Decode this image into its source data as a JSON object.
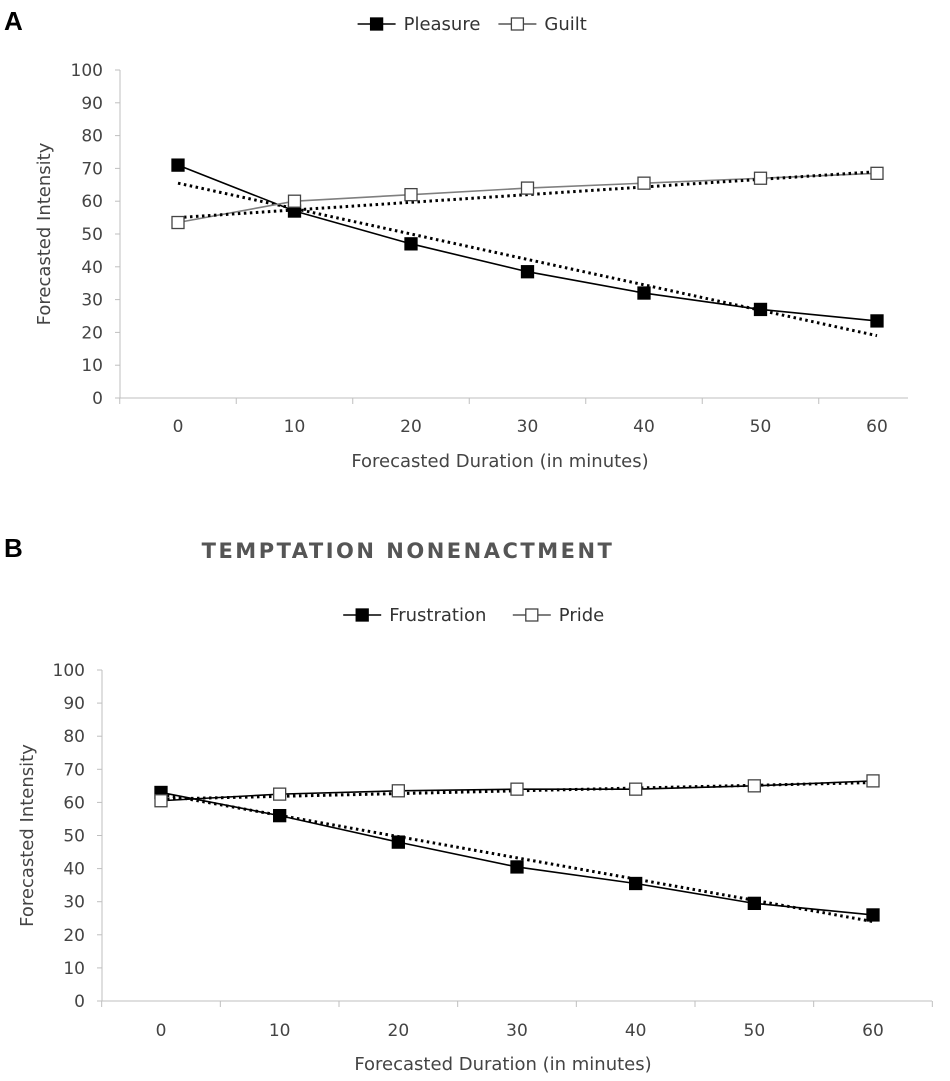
{
  "panels": {
    "a": {
      "label": "A"
    },
    "b": {
      "label": "B"
    }
  },
  "chart_data": [
    {
      "type": "line",
      "panel": "A",
      "title": "",
      "xlabel": "Forecasted Duration (in minutes)",
      "ylabel": "Forecasted Intensity",
      "xlim": [
        0,
        60
      ],
      "ylim": [
        0,
        100
      ],
      "x": [
        0,
        10,
        20,
        30,
        40,
        50,
        60
      ],
      "yticks": [
        0,
        10,
        20,
        30,
        40,
        50,
        60,
        70,
        80,
        90,
        100
      ],
      "legend_position": "top-center",
      "series": [
        {
          "name": "Pleasure",
          "marker": "filled-square",
          "color": "#000000",
          "values": [
            71,
            57,
            47,
            38.5,
            32,
            27,
            23.5
          ],
          "trendline": {
            "type": "linear",
            "start": 65.5,
            "end": 19
          }
        },
        {
          "name": "Guilt",
          "marker": "open-square",
          "color": "#7f7f7f",
          "values": [
            53.5,
            60,
            62,
            64,
            65.5,
            67,
            68.5
          ],
          "trendline": {
            "type": "linear",
            "start": 55,
            "end": 69
          }
        }
      ]
    },
    {
      "type": "line",
      "panel": "B",
      "title": "TEMPTATION NONENACTMENT",
      "xlabel": "Forecasted Duration (in minutes)",
      "ylabel": "Forecasted Intensity",
      "xlim": [
        0,
        60
      ],
      "ylim": [
        0,
        100
      ],
      "x": [
        0,
        10,
        20,
        30,
        40,
        50,
        60
      ],
      "yticks": [
        0,
        10,
        20,
        30,
        40,
        50,
        60,
        70,
        80,
        90,
        100
      ],
      "legend_position": "top-center",
      "series": [
        {
          "name": "Frustration",
          "marker": "filled-square",
          "color": "#000000",
          "values": [
            63,
            56,
            48,
            40.5,
            35.5,
            29.5,
            26
          ],
          "trendline": {
            "type": "linear",
            "start": 62.5,
            "end": 24
          }
        },
        {
          "name": "Pride",
          "marker": "open-square",
          "color": "#000000",
          "values": [
            60.5,
            62.5,
            63.5,
            64,
            64,
            65,
            66.5
          ],
          "trendline": {
            "type": "linear",
            "start": 61,
            "end": 66
          }
        }
      ]
    }
  ]
}
